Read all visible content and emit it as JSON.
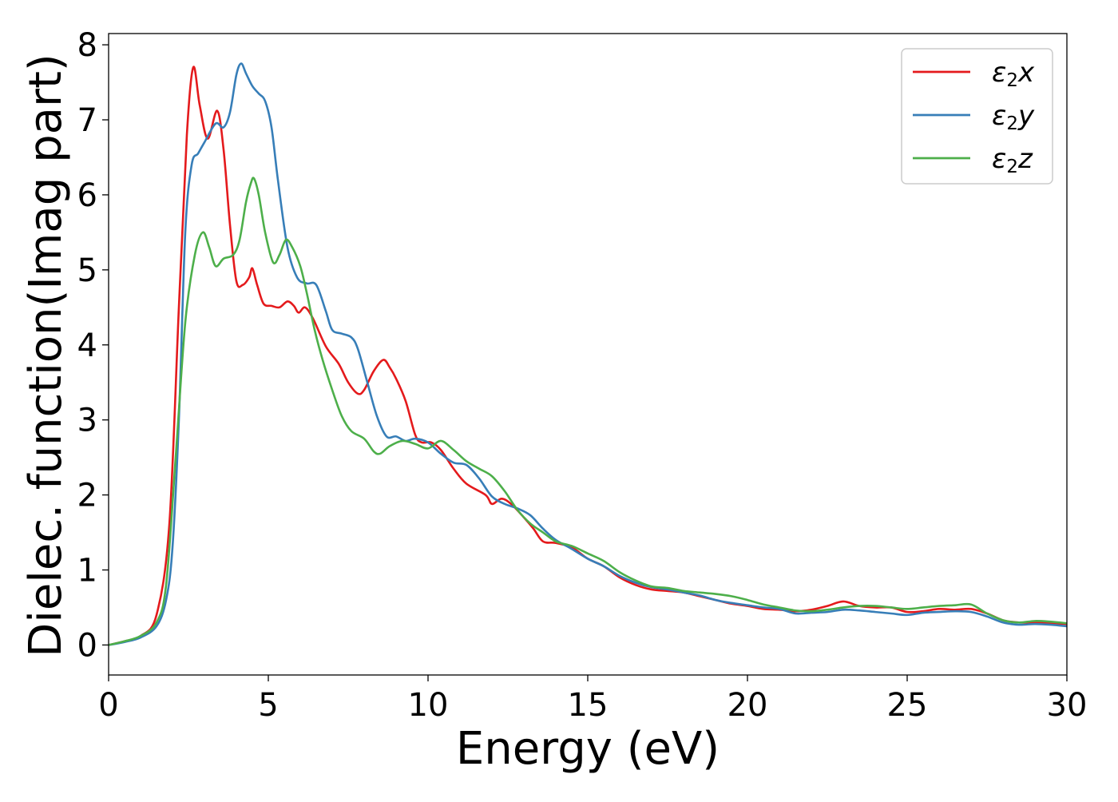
{
  "chart_data": {
    "type": "line",
    "title": "",
    "xlabel": "Energy (eV)",
    "ylabel": "Dielec. function(Imag part)",
    "xlim": [
      0,
      30
    ],
    "ylim": [
      -0.4,
      8.15
    ],
    "xticks": [
      0,
      5,
      10,
      15,
      20,
      25,
      30
    ],
    "yticks": [
      0,
      1,
      2,
      3,
      4,
      5,
      6,
      7,
      8
    ],
    "grid": false,
    "legend_position": "top-right",
    "series": [
      {
        "name": "ε2x",
        "legend_base": "ε",
        "legend_sub": "2",
        "legend_var": "x",
        "color": "#e41a1c",
        "points": [
          [
            0,
            0
          ],
          [
            0.5,
            0.05
          ],
          [
            1.0,
            0.12
          ],
          [
            1.5,
            0.4
          ],
          [
            1.9,
            1.6
          ],
          [
            2.2,
            4.5
          ],
          [
            2.45,
            6.8
          ],
          [
            2.65,
            7.7
          ],
          [
            2.85,
            7.2
          ],
          [
            3.1,
            6.75
          ],
          [
            3.4,
            7.12
          ],
          [
            3.6,
            6.6
          ],
          [
            3.8,
            5.6
          ],
          [
            4.0,
            4.85
          ],
          [
            4.2,
            4.8
          ],
          [
            4.4,
            4.9
          ],
          [
            4.5,
            5.02
          ],
          [
            4.65,
            4.8
          ],
          [
            4.85,
            4.55
          ],
          [
            5.1,
            4.52
          ],
          [
            5.35,
            4.5
          ],
          [
            5.6,
            4.58
          ],
          [
            5.8,
            4.52
          ],
          [
            5.95,
            4.43
          ],
          [
            6.15,
            4.5
          ],
          [
            6.4,
            4.35
          ],
          [
            6.8,
            3.98
          ],
          [
            7.2,
            3.75
          ],
          [
            7.5,
            3.5
          ],
          [
            7.8,
            3.35
          ],
          [
            8.0,
            3.4
          ],
          [
            8.3,
            3.65
          ],
          [
            8.6,
            3.8
          ],
          [
            8.8,
            3.7
          ],
          [
            9.0,
            3.55
          ],
          [
            9.3,
            3.25
          ],
          [
            9.6,
            2.8
          ],
          [
            9.8,
            2.7
          ],
          [
            10.1,
            2.7
          ],
          [
            10.4,
            2.6
          ],
          [
            10.8,
            2.35
          ],
          [
            11.2,
            2.15
          ],
          [
            11.8,
            2.0
          ],
          [
            12.0,
            1.88
          ],
          [
            12.3,
            1.95
          ],
          [
            12.6,
            1.88
          ],
          [
            13.0,
            1.7
          ],
          [
            13.3,
            1.55
          ],
          [
            13.6,
            1.38
          ],
          [
            14.0,
            1.36
          ],
          [
            14.5,
            1.3
          ],
          [
            15.0,
            1.15
          ],
          [
            15.5,
            1.05
          ],
          [
            16.0,
            0.9
          ],
          [
            16.5,
            0.8
          ],
          [
            17.0,
            0.74
          ],
          [
            17.5,
            0.72
          ],
          [
            18.0,
            0.7
          ],
          [
            18.5,
            0.65
          ],
          [
            19.0,
            0.6
          ],
          [
            19.5,
            0.55
          ],
          [
            20.0,
            0.52
          ],
          [
            20.5,
            0.48
          ],
          [
            21.0,
            0.47
          ],
          [
            21.5,
            0.45
          ],
          [
            22.0,
            0.47
          ],
          [
            22.5,
            0.52
          ],
          [
            23.0,
            0.58
          ],
          [
            23.5,
            0.52
          ],
          [
            24.0,
            0.5
          ],
          [
            24.5,
            0.5
          ],
          [
            25.0,
            0.44
          ],
          [
            25.5,
            0.45
          ],
          [
            26.0,
            0.48
          ],
          [
            26.5,
            0.47
          ],
          [
            27.0,
            0.48
          ],
          [
            27.5,
            0.42
          ],
          [
            28.0,
            0.33
          ],
          [
            28.5,
            0.3
          ],
          [
            29.0,
            0.3
          ],
          [
            29.5,
            0.29
          ],
          [
            30.0,
            0.28
          ]
        ]
      },
      {
        "name": "ε2y",
        "legend_base": "ε",
        "legend_sub": "2",
        "legend_var": "y",
        "color": "#377eb8",
        "points": [
          [
            0,
            0
          ],
          [
            0.5,
            0.04
          ],
          [
            1.0,
            0.1
          ],
          [
            1.5,
            0.25
          ],
          [
            1.8,
            0.6
          ],
          [
            2.0,
            1.3
          ],
          [
            2.2,
            3.0
          ],
          [
            2.4,
            5.5
          ],
          [
            2.6,
            6.4
          ],
          [
            2.8,
            6.55
          ],
          [
            3.0,
            6.7
          ],
          [
            3.35,
            6.95
          ],
          [
            3.6,
            6.9
          ],
          [
            3.8,
            7.1
          ],
          [
            4.0,
            7.6
          ],
          [
            4.15,
            7.75
          ],
          [
            4.3,
            7.62
          ],
          [
            4.5,
            7.45
          ],
          [
            4.7,
            7.35
          ],
          [
            4.9,
            7.25
          ],
          [
            5.1,
            6.9
          ],
          [
            5.3,
            6.2
          ],
          [
            5.6,
            5.3
          ],
          [
            5.9,
            4.9
          ],
          [
            6.2,
            4.82
          ],
          [
            6.5,
            4.8
          ],
          [
            6.8,
            4.45
          ],
          [
            7.0,
            4.2
          ],
          [
            7.3,
            4.15
          ],
          [
            7.6,
            4.1
          ],
          [
            7.8,
            3.95
          ],
          [
            8.1,
            3.5
          ],
          [
            8.4,
            3.05
          ],
          [
            8.7,
            2.78
          ],
          [
            9.0,
            2.78
          ],
          [
            9.3,
            2.72
          ],
          [
            9.6,
            2.75
          ],
          [
            10.0,
            2.7
          ],
          [
            10.4,
            2.55
          ],
          [
            10.8,
            2.43
          ],
          [
            11.2,
            2.4
          ],
          [
            11.6,
            2.22
          ],
          [
            12.0,
            1.98
          ],
          [
            12.4,
            1.88
          ],
          [
            12.8,
            1.82
          ],
          [
            13.2,
            1.73
          ],
          [
            13.6,
            1.55
          ],
          [
            14.0,
            1.4
          ],
          [
            14.5,
            1.28
          ],
          [
            15.0,
            1.15
          ],
          [
            15.5,
            1.05
          ],
          [
            16.0,
            0.92
          ],
          [
            16.5,
            0.83
          ],
          [
            17.0,
            0.77
          ],
          [
            17.5,
            0.74
          ],
          [
            18.0,
            0.7
          ],
          [
            18.5,
            0.66
          ],
          [
            19.0,
            0.6
          ],
          [
            19.5,
            0.56
          ],
          [
            20.0,
            0.53
          ],
          [
            20.5,
            0.5
          ],
          [
            21.0,
            0.48
          ],
          [
            21.5,
            0.42
          ],
          [
            22.0,
            0.43
          ],
          [
            22.5,
            0.44
          ],
          [
            23.0,
            0.47
          ],
          [
            23.5,
            0.46
          ],
          [
            24.0,
            0.44
          ],
          [
            24.5,
            0.42
          ],
          [
            25.0,
            0.4
          ],
          [
            25.5,
            0.43
          ],
          [
            26.0,
            0.44
          ],
          [
            26.5,
            0.45
          ],
          [
            27.0,
            0.44
          ],
          [
            27.5,
            0.38
          ],
          [
            28.0,
            0.3
          ],
          [
            28.5,
            0.27
          ],
          [
            29.0,
            0.28
          ],
          [
            29.5,
            0.27
          ],
          [
            30.0,
            0.25
          ]
        ]
      },
      {
        "name": "ε2z",
        "legend_base": "ε",
        "legend_sub": "2",
        "legend_var": "z",
        "color": "#4daf4a",
        "points": [
          [
            0,
            0
          ],
          [
            0.5,
            0.05
          ],
          [
            1.0,
            0.12
          ],
          [
            1.5,
            0.3
          ],
          [
            1.8,
            0.8
          ],
          [
            2.1,
            2.5
          ],
          [
            2.4,
            4.3
          ],
          [
            2.7,
            5.2
          ],
          [
            2.95,
            5.5
          ],
          [
            3.15,
            5.3
          ],
          [
            3.35,
            5.05
          ],
          [
            3.6,
            5.15
          ],
          [
            3.9,
            5.2
          ],
          [
            4.1,
            5.4
          ],
          [
            4.3,
            5.9
          ],
          [
            4.45,
            6.15
          ],
          [
            4.55,
            6.22
          ],
          [
            4.7,
            6.0
          ],
          [
            4.9,
            5.5
          ],
          [
            5.15,
            5.1
          ],
          [
            5.35,
            5.2
          ],
          [
            5.55,
            5.4
          ],
          [
            5.75,
            5.3
          ],
          [
            6.0,
            5.05
          ],
          [
            6.2,
            4.7
          ],
          [
            6.45,
            4.2
          ],
          [
            6.7,
            3.8
          ],
          [
            7.0,
            3.4
          ],
          [
            7.3,
            3.05
          ],
          [
            7.6,
            2.85
          ],
          [
            8.0,
            2.75
          ],
          [
            8.3,
            2.58
          ],
          [
            8.5,
            2.55
          ],
          [
            8.8,
            2.65
          ],
          [
            9.2,
            2.72
          ],
          [
            9.6,
            2.68
          ],
          [
            10.0,
            2.62
          ],
          [
            10.4,
            2.72
          ],
          [
            10.8,
            2.6
          ],
          [
            11.2,
            2.45
          ],
          [
            11.6,
            2.35
          ],
          [
            12.0,
            2.25
          ],
          [
            12.4,
            2.05
          ],
          [
            12.8,
            1.8
          ],
          [
            13.2,
            1.62
          ],
          [
            13.6,
            1.5
          ],
          [
            14.0,
            1.38
          ],
          [
            14.5,
            1.32
          ],
          [
            15.0,
            1.22
          ],
          [
            15.5,
            1.12
          ],
          [
            16.0,
            0.97
          ],
          [
            16.5,
            0.86
          ],
          [
            17.0,
            0.78
          ],
          [
            17.5,
            0.76
          ],
          [
            18.0,
            0.72
          ],
          [
            18.5,
            0.7
          ],
          [
            19.0,
            0.68
          ],
          [
            19.5,
            0.65
          ],
          [
            20.0,
            0.6
          ],
          [
            20.5,
            0.54
          ],
          [
            21.0,
            0.5
          ],
          [
            21.5,
            0.46
          ],
          [
            22.0,
            0.45
          ],
          [
            22.5,
            0.47
          ],
          [
            23.0,
            0.5
          ],
          [
            23.5,
            0.52
          ],
          [
            24.0,
            0.52
          ],
          [
            24.5,
            0.5
          ],
          [
            25.0,
            0.48
          ],
          [
            25.5,
            0.5
          ],
          [
            26.0,
            0.52
          ],
          [
            26.5,
            0.53
          ],
          [
            27.0,
            0.54
          ],
          [
            27.5,
            0.42
          ],
          [
            28.0,
            0.33
          ],
          [
            28.5,
            0.3
          ],
          [
            29.0,
            0.32
          ],
          [
            29.5,
            0.31
          ],
          [
            30.0,
            0.29
          ]
        ]
      }
    ]
  }
}
